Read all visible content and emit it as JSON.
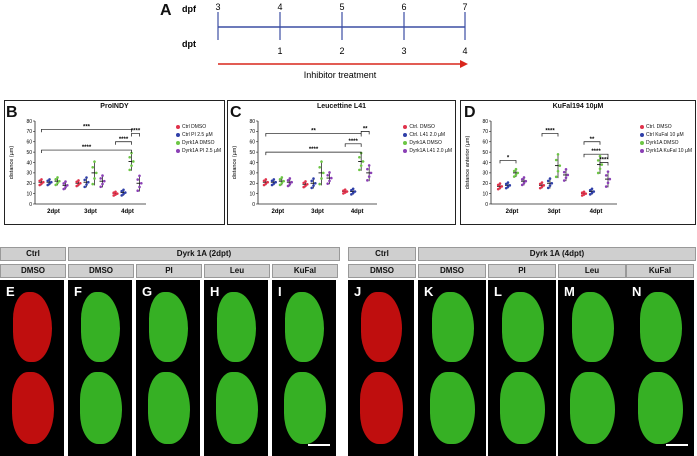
{
  "panelA": {
    "letter": "A",
    "dpf_label": "dpf",
    "dpt_label": "dpt",
    "dpf_ticks": [
      "3",
      "4",
      "5",
      "6",
      "7"
    ],
    "dpt_ticks": [
      "1",
      "2",
      "3",
      "4"
    ],
    "treatment_label": "Inhibitor treatment",
    "line_color": "#3b4ea3",
    "arrow_color": "#d9261c"
  },
  "charts": [
    {
      "letter": "B",
      "title": "ProINDY",
      "ylabel": "distance (µm)",
      "yticks": [
        "0",
        "10",
        "20",
        "30",
        "40",
        "50",
        "60",
        "70",
        "80"
      ],
      "xticks": [
        "2dpt",
        "3dpt",
        "4dpt"
      ],
      "legend": [
        "Ctrl DMSO",
        "Ctrl PI 2.5 µM",
        "Dyrk1A DMSO",
        "Dyrk1A PI 2.5 µM"
      ],
      "sig": [
        "***",
        "****",
        "****",
        "****"
      ]
    },
    {
      "letter": "C",
      "title": "Leucettine L41",
      "ylabel": "distance (µm)",
      "yticks": [
        "0",
        "10",
        "20",
        "30",
        "40",
        "50",
        "60",
        "70",
        "80"
      ],
      "xticks": [
        "2dpt",
        "3dpt",
        "4dpt"
      ],
      "legend": [
        "Ctrl. DMSO",
        "Ctrl. L41 2.0 µM",
        "Dyrk1A DMSO",
        "Dyrk1A L41 2.0 µM"
      ],
      "sig": [
        "**",
        "****",
        "****",
        "**"
      ]
    },
    {
      "letter": "D",
      "title": "KuFal194 10µM",
      "ylabel": "distance anterior (µm)",
      "yticks": [
        "0",
        "10",
        "20",
        "30",
        "40",
        "50",
        "60",
        "70",
        "80"
      ],
      "xticks": [
        "2dpt",
        "3dpt",
        "4dpt"
      ],
      "legend": [
        "Ctrl. DMSO",
        "Ctrl KuFal 10 µM",
        "Dyrk1A DMSO",
        "Dyrk1A KuFal 10 µM"
      ],
      "sig": [
        "*",
        "****",
        "**",
        "****",
        "****"
      ]
    }
  ],
  "series_colors": [
    "#e0324b",
    "#2f3fa8",
    "#6cc644",
    "#8a3fb5"
  ],
  "chart_data": [
    {
      "type": "scatter",
      "title": "ProINDY",
      "ylabel": "distance (µm)",
      "categories": [
        "2dpt",
        "3dpt",
        "4dpt"
      ],
      "ylim": [
        0,
        80
      ],
      "series": [
        {
          "name": "Ctrl DMSO",
          "values": [
            21,
            20,
            10
          ]
        },
        {
          "name": "Ctrl PI 2.5 µM",
          "values": [
            21,
            21,
            11
          ]
        },
        {
          "name": "Dyrk1A DMSO",
          "values": [
            22,
            30,
            41
          ]
        },
        {
          "name": "Dyrk1A PI 2.5 µM",
          "values": [
            18,
            22,
            20
          ]
        }
      ]
    },
    {
      "type": "scatter",
      "title": "Leucettine L41",
      "ylabel": "distance (µm)",
      "categories": [
        "2dpt",
        "3dpt",
        "4dpt"
      ],
      "ylim": [
        0,
        80
      ],
      "series": [
        {
          "name": "Ctrl. DMSO",
          "values": [
            21,
            19,
            12
          ]
        },
        {
          "name": "Ctrl. L41 2.0 µM",
          "values": [
            21,
            20,
            12
          ]
        },
        {
          "name": "Dyrk1A DMSO",
          "values": [
            22,
            30,
            41
          ]
        },
        {
          "name": "Dyrk1A L41 2.0 µM",
          "values": [
            21,
            25,
            30
          ]
        }
      ]
    },
    {
      "type": "scatter",
      "title": "KuFal194 10µM",
      "ylabel": "distance anterior (µm)",
      "categories": [
        "2dpt",
        "3dpt",
        "4dpt"
      ],
      "ylim": [
        0,
        80
      ],
      "series": [
        {
          "name": "Ctrl. DMSO",
          "values": [
            17,
            18,
            10
          ]
        },
        {
          "name": "Ctrl KuFal 10 µM",
          "values": [
            18,
            20,
            12
          ]
        },
        {
          "name": "Dyrk1A DMSO",
          "values": [
            30,
            37,
            38
          ]
        },
        {
          "name": "Dyrk1A KuFal 10 µM",
          "values": [
            22,
            28,
            24
          ]
        }
      ]
    }
  ],
  "image_headers": {
    "ctrl1": "Ctrl",
    "dmso1": "DMSO",
    "dyrk_2dpt": "Dyrk 1A (2dpt)",
    "ctrl2": "Ctrl",
    "dmso2": "DMSO",
    "dyrk_4dpt": "Dyrk 1A (4dpt)",
    "sub_2dpt": [
      "DMSO",
      "PI",
      "Leu",
      "KuFal"
    ],
    "sub_4dpt": [
      "DMSO",
      "PI",
      "Leu",
      "KuFal"
    ]
  },
  "image_tiles": [
    "E",
    "F",
    "G",
    "H",
    "I",
    "J",
    "K",
    "L",
    "M",
    "N"
  ],
  "tile_colors": [
    "#e01010",
    "#3fcf2a",
    "#3fcf2a",
    "#3fcf2a",
    "#3fcf2a",
    "#e01010",
    "#3fcf2a",
    "#3fcf2a",
    "#3fcf2a",
    "#3fcf2a"
  ]
}
